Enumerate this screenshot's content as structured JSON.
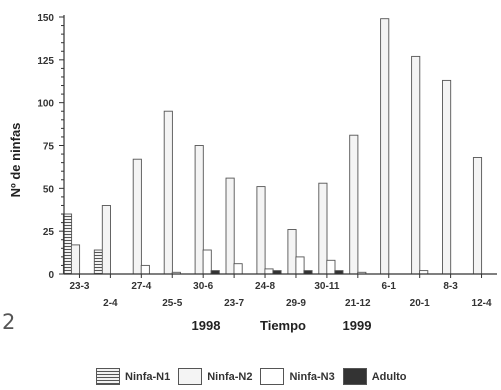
{
  "chart_data": {
    "type": "bar",
    "title": "",
    "ylabel": "Nº de ninfas",
    "xlabel": "Tiempo",
    "year_labels": [
      "1998",
      "1999"
    ],
    "ylim": [
      0,
      150
    ],
    "yticks": [
      0,
      25,
      50,
      75,
      100,
      125,
      150
    ],
    "categories": [
      "23-3",
      "2-4",
      "27-4",
      "25-5",
      "30-6",
      "23-7",
      "24-8",
      "29-9",
      "30-11",
      "21-12",
      "6-1",
      "20-1",
      "8-3",
      "12-4"
    ],
    "series": [
      {
        "name": "Ninfa-N1",
        "values": [
          35,
          14,
          0,
          0,
          0,
          0,
          0,
          0,
          0,
          0,
          0,
          0,
          0,
          0
        ]
      },
      {
        "name": "Ninfa-N2",
        "values": [
          17,
          40,
          67,
          95,
          75,
          56,
          51,
          26,
          53,
          81,
          149,
          127,
          113,
          68
        ]
      },
      {
        "name": "Ninfa-N3",
        "values": [
          0,
          0,
          5,
          1,
          14,
          6,
          3,
          10,
          8,
          1,
          0,
          2,
          0,
          0
        ]
      },
      {
        "name": "Adulto",
        "values": [
          0,
          0,
          0,
          0,
          2,
          0,
          2,
          2,
          2,
          0,
          0,
          0,
          0,
          0
        ]
      }
    ],
    "colors": {
      "Ninfa-N1": "#f2f2f2",
      "Ninfa-N2": "#f4f4f4",
      "Ninfa-N3": "#ffffff",
      "Adulto": "#333333"
    },
    "legend_position": "bottom",
    "grid": false
  },
  "stray_text": "2",
  "legend": [
    {
      "label": "Ninfa-N1"
    },
    {
      "label": "Ninfa-N2"
    },
    {
      "label": "Ninfa-N3"
    },
    {
      "label": "Adulto"
    }
  ]
}
